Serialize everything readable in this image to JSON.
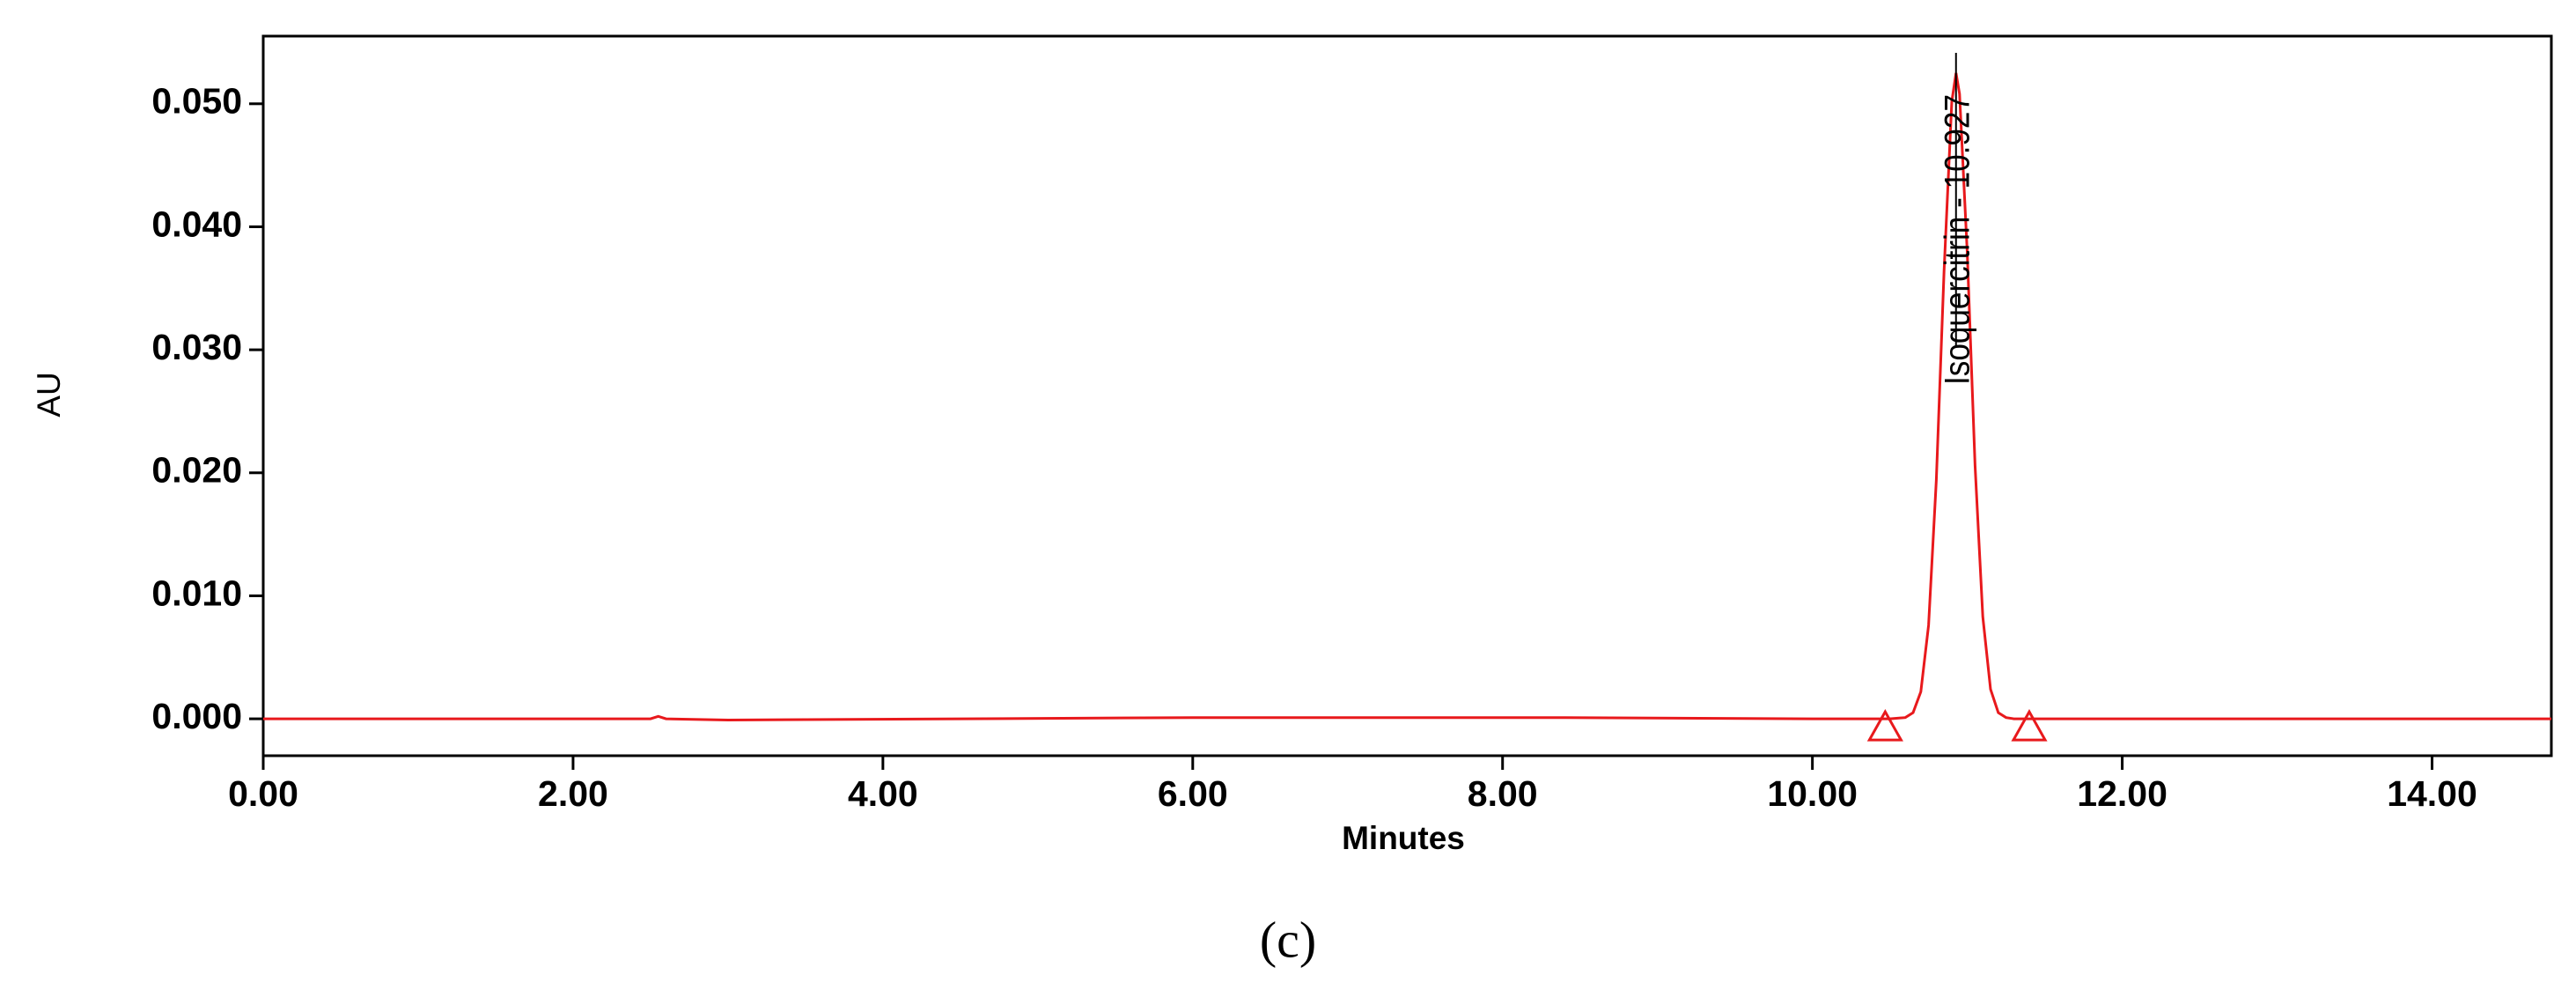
{
  "chart_data": {
    "type": "line",
    "x_label": "Minutes",
    "y_label": "AU",
    "annotation": "Isoquercitrin - 10.927",
    "caption": "(c)",
    "x": [
      0,
      2.5,
      2.55,
      2.6,
      3.0,
      6.0,
      8.4,
      10.0,
      10.5,
      10.6,
      10.65,
      10.7,
      10.75,
      10.8,
      10.85,
      10.9,
      10.927,
      10.95,
      11.0,
      11.05,
      11.1,
      11.15,
      11.2,
      11.25,
      11.3,
      12.0,
      14.77
    ],
    "series": [
      {
        "name": "AU",
        "color": "#e8191c",
        "values": [
          0,
          0,
          0.0002,
          0,
          -0.0001,
          0.0001,
          0.0001,
          0,
          0,
          0.0001,
          0.0005,
          0.0022,
          0.0076,
          0.0194,
          0.0364,
          0.0502,
          0.0525,
          0.0508,
          0.0378,
          0.0206,
          0.0083,
          0.0024,
          0.0005,
          0.0001,
          0,
          0,
          0
        ]
      }
    ],
    "baseline_markers": [
      {
        "x": 10.47,
        "y": 0
      },
      {
        "x": 11.4,
        "y": 0
      }
    ],
    "xlim": [
      0,
      14.77
    ],
    "ylim": [
      -0.003,
      0.0555
    ],
    "xticks": [
      {
        "value": 0,
        "label": "0.00"
      },
      {
        "value": 2,
        "label": "2.00"
      },
      {
        "value": 4,
        "label": "4.00"
      },
      {
        "value": 6,
        "label": "6.00"
      },
      {
        "value": 8,
        "label": "8.00"
      },
      {
        "value": 10,
        "label": "10.00"
      },
      {
        "value": 12,
        "label": "12.00"
      },
      {
        "value": 14,
        "label": "14.00"
      }
    ],
    "yticks": [
      {
        "value": 0,
        "label": "0.000"
      },
      {
        "value": 0.01,
        "label": "0.010"
      },
      {
        "value": 0.02,
        "label": "0.020"
      },
      {
        "value": 0.03,
        "label": "0.030"
      },
      {
        "value": 0.04,
        "label": "0.040"
      },
      {
        "value": 0.05,
        "label": "0.050"
      }
    ]
  }
}
